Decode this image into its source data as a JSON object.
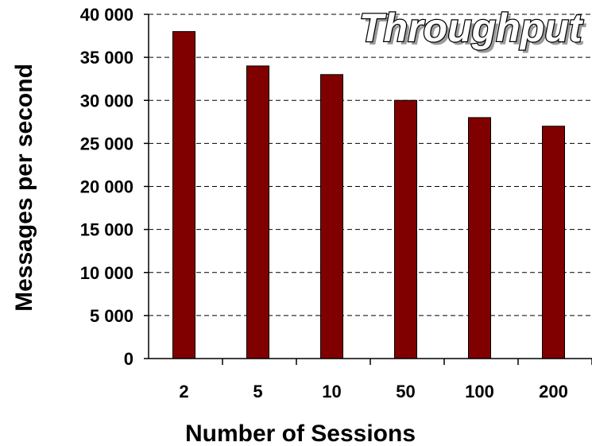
{
  "chart_data": {
    "type": "bar",
    "title": "Throughput",
    "xlabel": "Number of Sessions",
    "ylabel": "Messages per  second",
    "categories": [
      "2",
      "5",
      "10",
      "50",
      "100",
      "200"
    ],
    "values": [
      38000,
      34000,
      33000,
      30000,
      28000,
      27000
    ],
    "ylim": [
      0,
      40000
    ],
    "yticks": [
      "0",
      "5 000",
      "10 000",
      "15 000",
      "20 000",
      "25 000",
      "30 000",
      "35 000",
      "40 000"
    ],
    "grid": true,
    "bar_color": "#800000"
  }
}
